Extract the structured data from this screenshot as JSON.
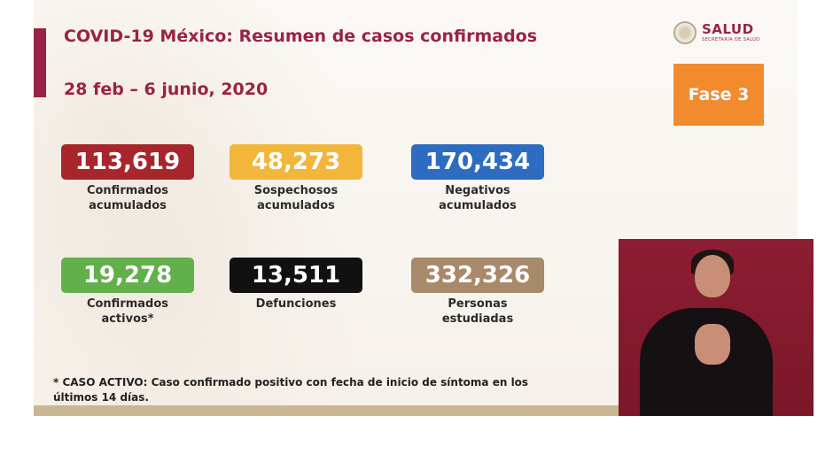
{
  "header": {
    "title": "COVID-19 México: Resumen de casos confirmados",
    "date_range": "28 feb – 6 junio, 2020"
  },
  "logo": {
    "name": "SALUD",
    "subtitle": "SECRETARÍA DE SALUD"
  },
  "phase": {
    "label": "Fase 3",
    "color": "#f28a2e"
  },
  "stats": [
    {
      "value": "113,619",
      "label_line1": "Confirmados",
      "label_line2": "acumulados",
      "color": "#a7262b"
    },
    {
      "value": "48,273",
      "label_line1": "Sospechosos",
      "label_line2": "acumulados",
      "color": "#f2b63a"
    },
    {
      "value": "170,434",
      "label_line1": "Negativos",
      "label_line2": "acumulados",
      "color": "#2d6cc0"
    },
    {
      "value": "19,278",
      "label_line1": "Confirmados",
      "label_line2": "activos*",
      "color": "#62b04b"
    },
    {
      "value": "13,511",
      "label_line1": "Defunciones",
      "label_line2": "",
      "color": "#111111"
    },
    {
      "value": "332,326",
      "label_line1": "Personas",
      "label_line2": "estudiadas",
      "color": "#a8896a"
    }
  ],
  "footnote": {
    "line1": "* CASO ACTIVO: Caso confirmado positivo con fecha de inicio de síntoma en los",
    "line2": "últimos 14 días."
  },
  "colors": {
    "accent": "#9b2247",
    "band": "#c9b792"
  }
}
